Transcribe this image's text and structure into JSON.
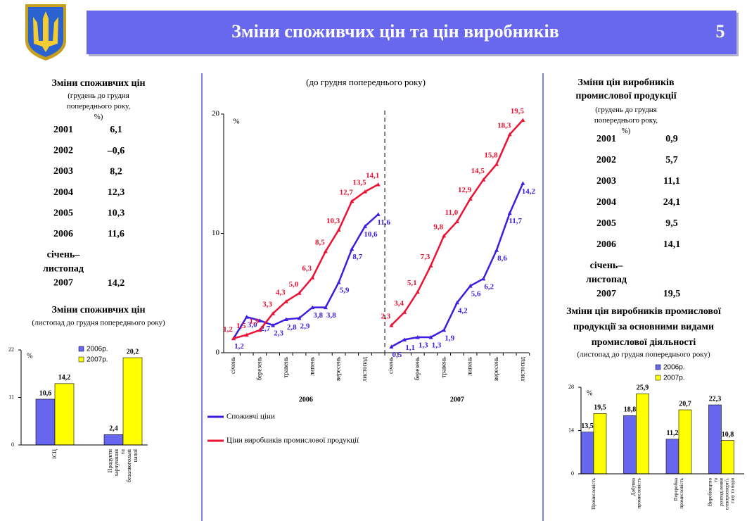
{
  "header": {
    "title": "Зміни споживчих цін та цін виробників",
    "page_number": "5"
  },
  "cpi_table": {
    "title": "Зміни споживчих цін",
    "subtitle": "(грудень до грудня попереднього року, %)",
    "rows": [
      [
        "2001",
        "6,1"
      ],
      [
        "2002",
        "–0,6"
      ],
      [
        "2003",
        "8,2"
      ],
      [
        "2004",
        "12,3"
      ],
      [
        "2005",
        "10,3"
      ],
      [
        "2006",
        "11,6"
      ],
      [
        "січень– листопад 2007",
        "14,2"
      ]
    ]
  },
  "ppi_table": {
    "title": "Зміни цін виробників промислової продукції",
    "subtitle": "(грудень до грудня попереднього року, %)",
    "rows": [
      [
        "2001",
        "0,9"
      ],
      [
        "2002",
        "5,7"
      ],
      [
        "2003",
        "11,1"
      ],
      [
        "2004",
        "24,1"
      ],
      [
        "2005",
        "9,5"
      ],
      [
        "2006",
        "14,1"
      ],
      [
        "січень– листопад 2007",
        "19,5"
      ]
    ]
  },
  "chart_data": [
    {
      "type": "bar",
      "title": "Зміни споживчих цін",
      "subtitle": "(листопад до грудня попереднього року)",
      "y_label": "%",
      "categories": [
        "ІСЦ",
        "Продукти харчування та безалкогольні напої"
      ],
      "series": [
        {
          "name": "2006р.",
          "color": "#6666ee",
          "values": [
            10.6,
            2.4
          ],
          "value_labels": [
            "10,6",
            "2,4"
          ]
        },
        {
          "name": "2007р.",
          "color": "#ffff00",
          "values": [
            14.2,
            20.2
          ],
          "value_labels": [
            "14,2",
            "20,2"
          ]
        }
      ],
      "ylim": [
        0,
        22
      ],
      "yticks": [
        0,
        11,
        22
      ]
    },
    {
      "type": "line",
      "title": "(до грудня попереднього року)",
      "y_label": "%",
      "ylim": [
        0,
        20
      ],
      "yticks": [
        0,
        10,
        20
      ],
      "groups": [
        {
          "label": "2006",
          "categories": [
            "січень",
            null,
            "березень",
            null,
            "травень",
            null,
            "липень",
            null,
            "вересень",
            null,
            "листопад",
            null
          ]
        },
        {
          "label": "2007",
          "categories": [
            "січень",
            null,
            "березень",
            null,
            "травень",
            null,
            "липень",
            null,
            "вересень",
            null,
            "листопад"
          ]
        }
      ],
      "series": [
        {
          "name": "Споживчі ціни",
          "color": "#3a1fe0",
          "values": [
            [
              1.2,
              3.0,
              2.7,
              2.3,
              2.8,
              2.9,
              3.8,
              3.8,
              5.9,
              8.7,
              10.6,
              11.6
            ],
            [
              0.5,
              1.1,
              1.3,
              1.3,
              1.9,
              4.2,
              5.6,
              6.2,
              8.6,
              11.7,
              14.2
            ]
          ],
          "value_labels": [
            [
              "1,2",
              "3,0",
              "2,7",
              "2,3",
              "2,8",
              "2,9",
              "3,8",
              "3,8",
              "5,9",
              "8,7",
              "10,6",
              "11,6"
            ],
            [
              "0,5",
              "1,1",
              "1,3",
              "1,3",
              "1,9",
              "4,2",
              "5,6",
              "6,2",
              "8,6",
              "11,7",
              "14,2"
            ]
          ]
        },
        {
          "name": "Ціни виробників промислової продукції",
          "color": "#ee1133",
          "values": [
            [
              1.2,
              1.5,
              1.9,
              3.3,
              4.3,
              5.0,
              6.3,
              8.5,
              10.3,
              12.7,
              13.5,
              14.1
            ],
            [
              2.3,
              3.4,
              5.1,
              7.3,
              9.8,
              11.0,
              12.9,
              14.5,
              15.8,
              18.3,
              19.5
            ]
          ],
          "value_labels": [
            [
              "1,2",
              "1,5",
              "1,9",
              "3,3",
              "4,3",
              "5,0",
              "6,3",
              "8,5",
              "10,3",
              "12,7",
              "13,5",
              "14,1"
            ],
            [
              "2,3",
              "3,4",
              "5,1",
              "7,3",
              "9,8",
              "11,0",
              "12,9",
              "14,5",
              "15,8",
              "18,3",
              "19,5"
            ]
          ]
        }
      ]
    },
    {
      "type": "bar",
      "title": "Зміни цін виробників промислової продукції за основними видами промислової діяльності",
      "subtitle": "(листопад до грудня попереднього року)",
      "y_label": "%",
      "categories": [
        "Промисловість",
        "Добувна промисловість",
        "Переробна промисловість",
        "Виробництво та розподілення електроенергії, газу та води"
      ],
      "series": [
        {
          "name": "2006р.",
          "color": "#6666ee",
          "values": [
            13.5,
            18.8,
            11.2,
            22.3
          ],
          "value_labels": [
            "13,5",
            "18,8",
            "11,2",
            "22,3"
          ]
        },
        {
          "name": "2007р.",
          "color": "#ffff00",
          "values": [
            19.5,
            25.9,
            20.7,
            10.8
          ],
          "value_labels": [
            "19,5",
            "25,9",
            "20,7",
            "10,8"
          ]
        }
      ],
      "ylim": [
        0,
        28
      ],
      "yticks": [
        0,
        14,
        28
      ]
    }
  ]
}
